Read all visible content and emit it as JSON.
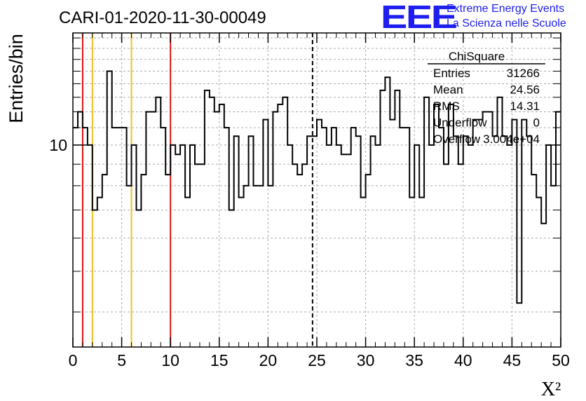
{
  "header": {
    "title": "CARI-01-2020-11-30-00049",
    "logo_text": "EEE",
    "logo_line1": "Extreme Energy Events",
    "logo_line2": "La Scienza nelle Scuole"
  },
  "colors": {
    "logo": "#1e1ef0",
    "red_line": "#e01010",
    "yellow_line": "#f0c020",
    "histogram": "#000000",
    "grid": "#aaaaaa"
  },
  "stats_box": {
    "name": "ChiSquare",
    "rows": [
      {
        "label": "Entries",
        "value": "31266"
      },
      {
        "label": "Mean",
        "value": "24.56"
      },
      {
        "label": "RMS",
        "value": "14.31"
      },
      {
        "label": "Underflow",
        "value": "0"
      },
      {
        "label": "Overflow",
        "value": "3.004e+04"
      }
    ]
  },
  "chart_data": {
    "type": "histogram",
    "title": "CARI-01-2020-11-30-00049",
    "xlabel": "X²",
    "ylabel": "Entries/bin",
    "xlim": [
      0,
      50
    ],
    "ylim": [
      3.3,
      18.5
    ],
    "yscale": "log",
    "grid": true,
    "bin_width": 0.5,
    "x_ticks": [
      "0",
      "5",
      "10",
      "15",
      "20",
      "25",
      "30",
      "35",
      "40",
      "45",
      "50"
    ],
    "y_ticks": [
      "10"
    ],
    "values": [
      11,
      12,
      11,
      10,
      7,
      7.5,
      8.5,
      15,
      11,
      11,
      11,
      8,
      10,
      7,
      8.5,
      12,
      12,
      13,
      11,
      8.5,
      10,
      9.5,
      10,
      7.5,
      10,
      9,
      9,
      13.5,
      13,
      12,
      12.5,
      11,
      7,
      10.5,
      7.5,
      8,
      10.5,
      8,
      8,
      11.5,
      8,
      12,
      12.5,
      13,
      10,
      9,
      8.5,
      9,
      10.5,
      10.5,
      11.5,
      11,
      10,
      11,
      10,
      9.5,
      9.5,
      11,
      10.5,
      7.5,
      8.5,
      10.5,
      10,
      13.5,
      14.5,
      11.5,
      13.5,
      11,
      11,
      7.5,
      10,
      7.5,
      13,
      10,
      12.5,
      11,
      9,
      12.5,
      10.5,
      9,
      10.5,
      10,
      11.5,
      11.5,
      12,
      12,
      10.5,
      13,
      10.5,
      10,
      11.5,
      4.2,
      11.5,
      10.5,
      8.5,
      7.5,
      6.5,
      10,
      8,
      12
    ],
    "vertical_lines": [
      {
        "x": 1,
        "style": "solid",
        "color": "red"
      },
      {
        "x": 2,
        "style": "solid",
        "color": "yellow"
      },
      {
        "x": 6,
        "style": "solid",
        "color": "yellow"
      },
      {
        "x": 10,
        "style": "solid",
        "color": "red"
      },
      {
        "x": 24.56,
        "style": "dashed",
        "color": "black"
      }
    ]
  }
}
